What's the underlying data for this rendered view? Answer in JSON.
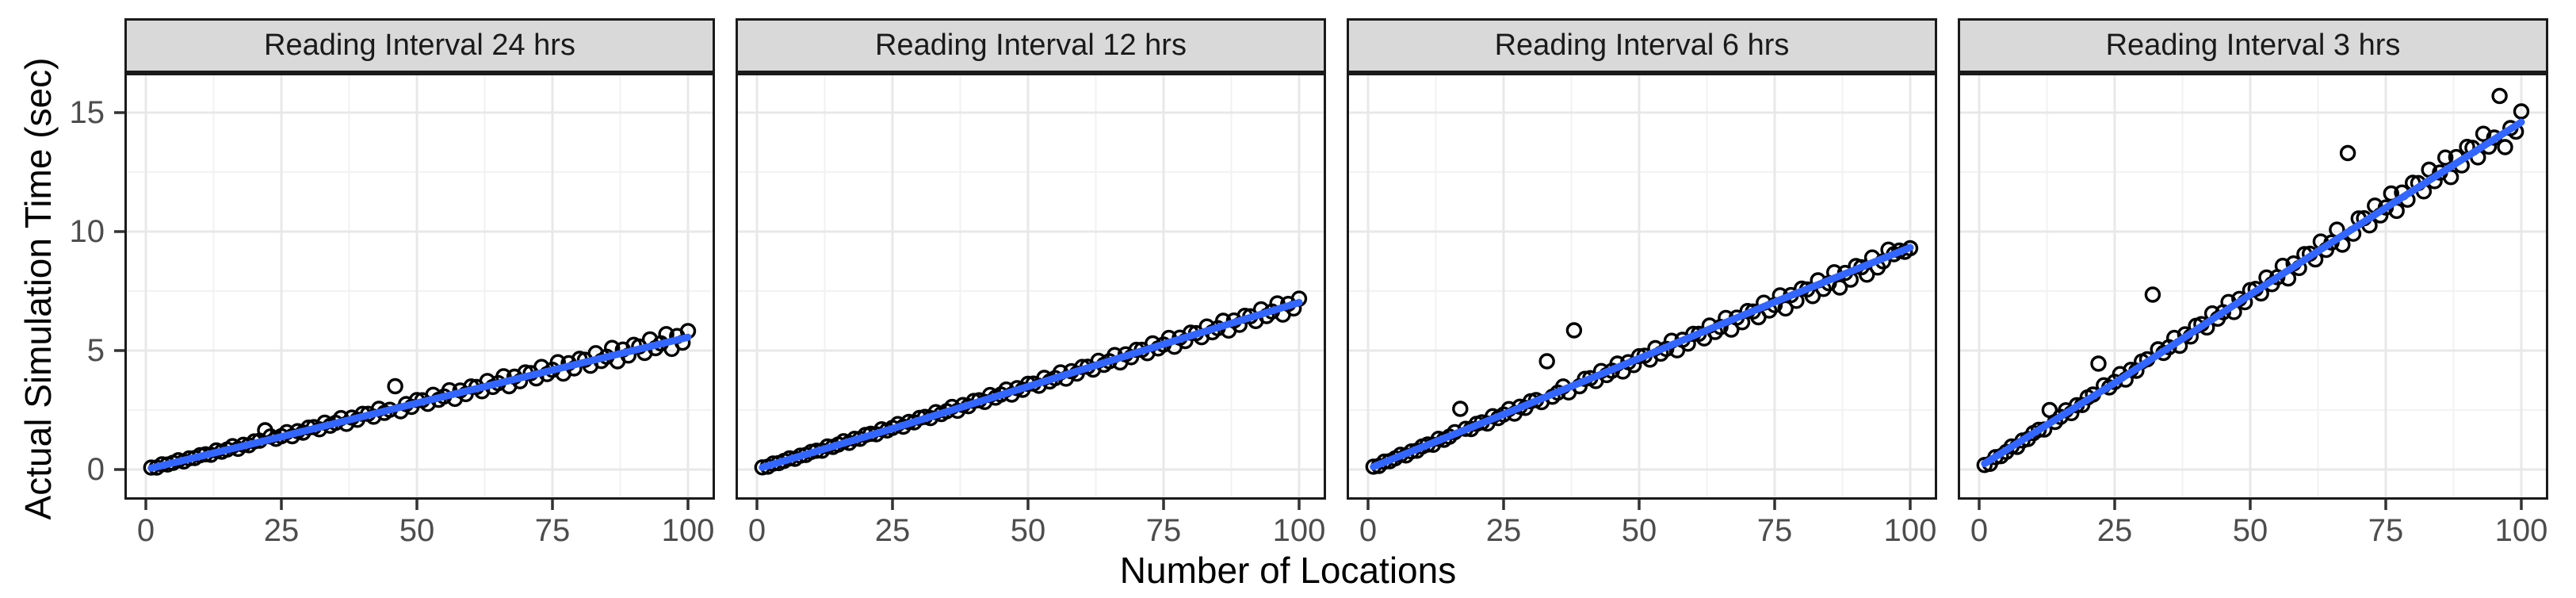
{
  "figure": {
    "y_axis_title": "Actual Simulation Time (sec)",
    "x_axis_title": "Number of Locations",
    "colors": {
      "smooth_line": "#3366FF",
      "point_stroke": "#000000",
      "strip_fill": "#D9D9D9",
      "strip_border": "#1A1A1A",
      "panel_border": "#1A1A1A",
      "grid_major": "#E8E8E8",
      "grid_minor": "#F2F2F2",
      "tick_label": "#4D4D4D",
      "tick_mark": "#333333",
      "axis_title": "#000000",
      "background": "#FFFFFF"
    },
    "x_tick_labels": [
      "0",
      "25",
      "50",
      "75",
      "100"
    ],
    "y_tick_labels": [
      "0",
      "5",
      "10",
      "15"
    ]
  },
  "chart_data": {
    "type": "scatter",
    "title": "",
    "xlabel": "Number of Locations",
    "ylabel": "Actual Simulation Time (sec)",
    "x": {
      "from": 1,
      "to": 100,
      "step": 1
    },
    "xlim": [
      -3.95,
      104.95
    ],
    "ylim": [
      -1.33,
      16.73
    ],
    "x_ticks": [
      0,
      25,
      50,
      75,
      100
    ],
    "y_ticks": [
      0,
      5,
      10,
      15
    ],
    "x_minor_ticks": [
      12.5,
      37.5,
      62.5,
      87.5
    ],
    "y_minor_ticks": [
      2.5,
      7.5,
      12.5
    ],
    "grid": true,
    "legend": "none",
    "point_shape": "open-circle",
    "facets": [
      {
        "label": "Reading Interval 24 hrs",
        "y": [
          0.08,
          0.08,
          0.22,
          0.21,
          0.28,
          0.39,
          0.34,
          0.47,
          0.48,
          0.6,
          0.64,
          0.62,
          0.8,
          0.75,
          0.84,
          0.98,
          0.87,
          1.04,
          1.02,
          1.18,
          1.21,
          1.65,
          1.39,
          1.29,
          1.4,
          1.57,
          1.4,
          1.61,
          1.55,
          1.76,
          1.78,
          1.69,
          1.97,
          1.84,
          1.96,
          2.16,
          1.92,
          2.18,
          2.09,
          2.34,
          2.34,
          2.22,
          2.55,
          2.38,
          2.51,
          3.5,
          2.45,
          2.75,
          2.63,
          2.92,
          2.91,
          2.76,
          3.14,
          2.93,
          3.07,
          3.33,
          2.97,
          3.32,
          3.17,
          3.49,
          3.47,
          3.29,
          3.72,
          3.47,
          3.63,
          3.92,
          3.5,
          3.9,
          3.71,
          4.08,
          4.05,
          3.83,
          4.31,
          4.01,
          4.19,
          4.51,
          4.03,
          4.47,
          4.25,
          4.65,
          4.61,
          4.36,
          4.89,
          4.56,
          4.74,
          5.11,
          4.55,
          5.04,
          4.79,
          5.24,
          5.17,
          4.9,
          5.47,
          5.1,
          5.3,
          5.69,
          5.07,
          5.61,
          5.33,
          5.82
        ],
        "smooth": {
          "x": [
            1,
            25,
            50,
            75,
            100
          ],
          "y": [
            0.06,
            1.38,
            2.79,
            4.18,
            5.56
          ]
        }
      },
      {
        "label": "Reading Interval 12 hrs",
        "y": [
          0.09,
          0.12,
          0.25,
          0.27,
          0.36,
          0.47,
          0.45,
          0.58,
          0.61,
          0.74,
          0.79,
          0.79,
          0.97,
          0.95,
          1.05,
          1.19,
          1.12,
          1.29,
          1.29,
          1.45,
          1.5,
          1.48,
          1.69,
          1.64,
          1.75,
          1.91,
          1.8,
          2.0,
          1.98,
          2.17,
          2.21,
          2.16,
          2.41,
          2.33,
          2.45,
          2.63,
          2.47,
          2.71,
          2.66,
          2.88,
          2.91,
          2.84,
          3.13,
          3.02,
          3.15,
          3.36,
          3.15,
          3.42,
          3.35,
          3.6,
          3.61,
          3.52,
          3.85,
          3.7,
          3.84,
          4.08,
          3.82,
          4.13,
          4.03,
          4.31,
          4.32,
          4.2,
          4.57,
          4.4,
          4.55,
          4.81,
          4.5,
          4.84,
          4.72,
          5.03,
          5.03,
          4.89,
          5.3,
          5.09,
          5.25,
          5.53,
          5.16,
          5.54,
          5.4,
          5.75,
          5.73,
          5.56,
          6.01,
          5.77,
          5.94,
          6.25,
          5.84,
          6.26,
          6.08,
          6.46,
          6.44,
          6.24,
          6.73,
          6.45,
          6.64,
          6.98,
          6.51,
          6.96,
          6.77,
          7.18
        ],
        "smooth": {
          "x": [
            1,
            25,
            50,
            75,
            100
          ],
          "y": [
            0.09,
            1.72,
            3.49,
            5.27,
            7.02
          ]
        }
      },
      {
        "label": "Reading Interval 6 hrs",
        "y": [
          0.12,
          0.15,
          0.33,
          0.35,
          0.47,
          0.62,
          0.59,
          0.76,
          0.79,
          0.97,
          1.05,
          1.04,
          1.29,
          1.25,
          1.38,
          1.57,
          2.55,
          1.71,
          1.7,
          1.92,
          1.98,
          1.93,
          2.24,
          2.16,
          2.31,
          2.54,
          2.35,
          2.64,
          2.59,
          2.87,
          2.92,
          2.83,
          4.55,
          3.06,
          3.23,
          3.49,
          3.24,
          5.85,
          3.5,
          3.81,
          3.84,
          3.72,
          4.14,
          3.97,
          4.15,
          4.45,
          4.12,
          4.51,
          4.39,
          4.76,
          4.78,
          4.62,
          5.1,
          4.87,
          5.07,
          5.41,
          5.01,
          5.45,
          5.29,
          5.7,
          5.7,
          5.51,
          6.05,
          5.78,
          5.99,
          6.37,
          5.88,
          6.38,
          6.19,
          6.66,
          6.64,
          6.4,
          7.01,
          6.68,
          6.91,
          7.32,
          6.77,
          7.33,
          7.09,
          7.6,
          7.57,
          7.29,
          7.95,
          7.59,
          7.83,
          8.29,
          7.65,
          8.26,
          7.98,
          8.55,
          8.5,
          8.19,
          8.91,
          8.49,
          8.75,
          9.24,
          9.05,
          9.2,
          9.15,
          9.3
        ],
        "smooth": {
          "x": [
            1,
            25,
            50,
            75,
            100
          ],
          "y": [
            0.12,
            2.32,
            4.67,
            7.04,
            9.33
          ]
        }
      },
      {
        "label": "Reading Interval 3 hrs",
        "y": [
          0.19,
          0.24,
          0.52,
          0.56,
          0.74,
          0.97,
          0.95,
          1.22,
          1.28,
          1.53,
          1.67,
          1.68,
          2.5,
          2.0,
          2.21,
          2.49,
          2.37,
          2.7,
          2.71,
          3.03,
          3.15,
          4.45,
          3.54,
          3.45,
          3.68,
          4.01,
          3.78,
          4.19,
          4.15,
          4.54,
          4.63,
          7.35,
          5.05,
          4.9,
          5.14,
          5.53,
          5.2,
          5.68,
          5.59,
          6.04,
          6.11,
          5.97,
          6.56,
          6.34,
          6.61,
          7.04,
          6.62,
          7.17,
          7.03,
          7.54,
          7.59,
          7.4,
          8.07,
          7.79,
          8.08,
          8.56,
          8.03,
          8.66,
          8.47,
          9.05,
          9.07,
          8.83,
          9.58,
          9.23,
          9.54,
          10.08,
          9.45,
          13.3,
          9.91,
          10.55,
          10.56,
          10.26,
          11.09,
          10.68,
          11.01,
          11.6,
          10.87,
          11.64,
          11.34,
          12.05,
          12.04,
          11.69,
          12.6,
          12.12,
          12.48,
          13.11,
          12.29,
          13.13,
          12.78,
          13.56,
          13.52,
          13.12,
          14.11,
          13.57,
          13.95,
          15.7,
          13.55,
          14.35,
          14.2,
          15.05
        ],
        "smooth": {
          "x": [
            1,
            25,
            50,
            75,
            100
          ],
          "y": [
            0.25,
            3.64,
            7.35,
            11.0,
            14.6
          ]
        }
      }
    ]
  }
}
